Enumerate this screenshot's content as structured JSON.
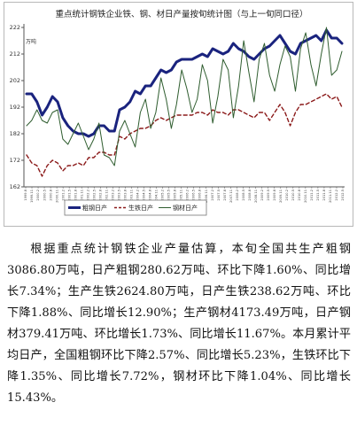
{
  "chart_data": {
    "type": "line",
    "title": "重点统计钢铁企业铁、钢、材日产量按旬统计图（与上一旬同口径）",
    "ylabel": "万吨",
    "xlabel": "",
    "ylim": [
      162,
      222
    ],
    "yticks": [
      162,
      172,
      182,
      192,
      202,
      212,
      222
    ],
    "grid": false,
    "legend_position": "bottom",
    "colors": {
      "steel": "#1a237e",
      "iron": "#8b1a1a",
      "material": "#2f5d2f",
      "axis": "#555555"
    },
    "x_tick_labels": [
      "1999.8",
      "1999.11",
      "2000.2",
      "2000.5",
      "2000.8",
      "2000.11",
      "2001.2",
      "2001.5",
      "2001.8",
      "2001.11",
      "2002.2",
      "2002.5",
      "2002.8",
      "2002.11",
      "2003.2",
      "2003.5",
      "2003.8",
      "2003.11",
      "2004.2",
      "2004.5",
      "2004.8",
      "2004.11",
      "2005.2",
      "2005.5",
      "2005.8",
      "2005.11",
      "2006.2",
      "2006.5",
      "2006.8",
      "2006.11",
      "2007.2",
      "2007.5",
      "2007.8",
      "2007.11",
      "2008.2",
      "2008.5",
      "2008.8",
      "2008.11",
      "2009.2",
      "2009.5",
      "2009.8",
      "2009.11",
      "2010.2",
      "2010.5",
      "2010.8",
      "2010.11",
      "2011.2",
      "2011.5",
      "2011.8",
      "2011.11",
      "2012.2",
      "2012.5"
    ],
    "series": [
      {
        "name": "粗钢日产",
        "style": "solid-thick",
        "values": [
          197,
          197,
          194,
          189,
          192,
          196,
          194,
          188,
          185,
          183,
          182,
          182,
          181,
          182,
          185,
          185,
          183,
          183,
          191,
          192,
          194,
          198,
          197,
          200,
          200,
          203,
          206,
          205,
          206,
          209,
          210,
          210,
          210,
          211,
          212,
          211,
          214,
          213,
          212,
          213,
          216,
          214,
          213,
          211,
          210,
          212,
          214,
          215,
          217,
          219,
          216,
          213,
          212,
          216,
          217,
          218,
          219,
          217,
          221,
          218,
          218,
          216
        ]
      },
      {
        "name": "生铁日产",
        "style": "dashed",
        "values": [
          174,
          171,
          170,
          166,
          170,
          172,
          171,
          168,
          170,
          170,
          171,
          170,
          173,
          173,
          175,
          175,
          174,
          174,
          181,
          180,
          182,
          183,
          184,
          184,
          185,
          187,
          188,
          187,
          188,
          189,
          189,
          189,
          189,
          190,
          190,
          189,
          191,
          190,
          190,
          189,
          191,
          191,
          190,
          189,
          188,
          190,
          190,
          187,
          190,
          193,
          190,
          185,
          190,
          193,
          193,
          194,
          195,
          196,
          197,
          195,
          196,
          192
        ]
      },
      {
        "name": "钢材日产",
        "style": "thin",
        "values": [
          185,
          187,
          191,
          187,
          186,
          190,
          191,
          180,
          178,
          182,
          186,
          181,
          176,
          180,
          186,
          174,
          173,
          170,
          183,
          187,
          182,
          177,
          190,
          195,
          184,
          190,
          203,
          195,
          184,
          193,
          206,
          199,
          190,
          195,
          208,
          202,
          186,
          196,
          210,
          206,
          188,
          200,
          217,
          205,
          194,
          210,
          216,
          204,
          198,
          208,
          215,
          211,
          198,
          214,
          220,
          208,
          200,
          212,
          222,
          204,
          206,
          213
        ]
      }
    ]
  },
  "article": {
    "paragraph": "根据重点统计钢铁企业产量估算，本旬全国共生产粗钢3086.80万吨，日产粗钢280.62万吨、环比下降1.60%、同比增长7.34%；生产生铁2624.80万吨，日产生铁238.62万吨、环比下降1.88%、同比增长12.90%；生产钢材4173.49万吨，日产钢材379.41万吨、环比增长1.73%、同比增长11.67%。本月累计平均日产，全国粗钢环比下降2.57%、同比增长5.23%，生铁环比下降1.35%、同比增长7.72%，钢材环比下降1.04%、同比增长15.43%。"
  }
}
